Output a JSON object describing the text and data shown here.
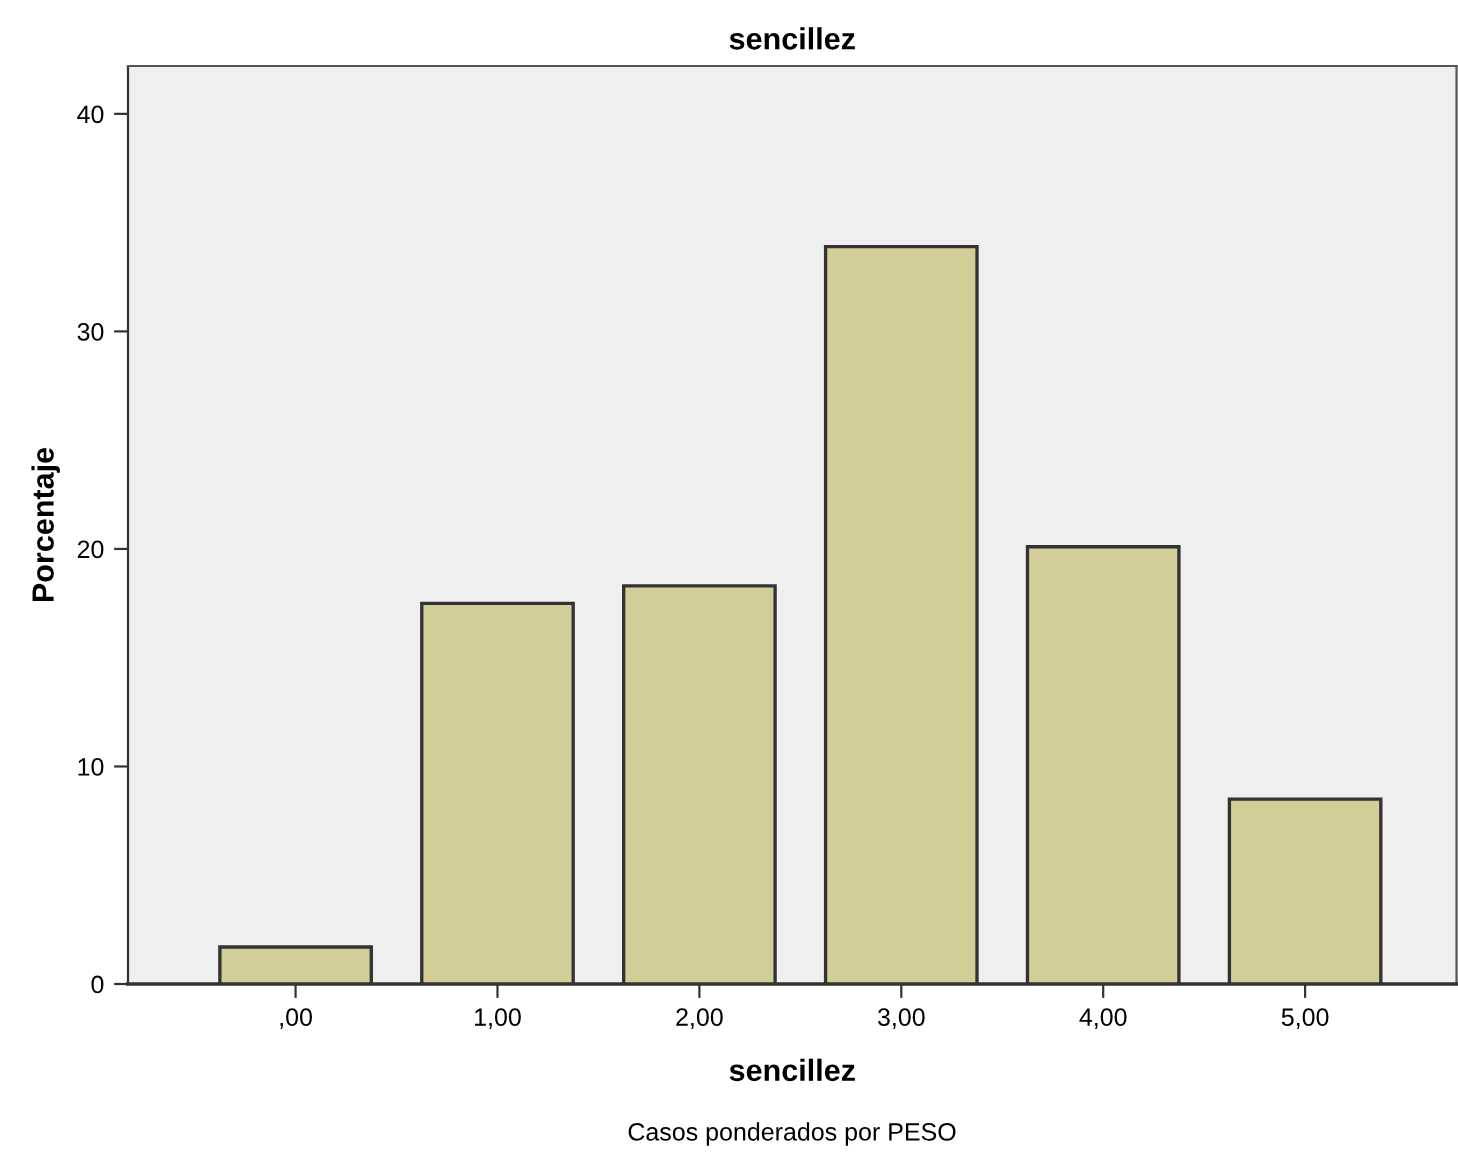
{
  "chart_data": {
    "type": "bar",
    "title": "sencillez",
    "xlabel": "sencillez",
    "ylabel": "Porcentaje",
    "categories": [
      ",00",
      "1,00",
      "2,00",
      "3,00",
      "4,00",
      "5,00"
    ],
    "values": [
      1.7,
      17.5,
      18.3,
      33.9,
      20.1,
      8.5
    ],
    "color": "#d3ce98",
    "ylim": [
      0,
      42.2
    ],
    "yticks": [
      0,
      10,
      20,
      30,
      40
    ],
    "grid": false,
    "annotations": [
      "Casos ponderados por PESO"
    ]
  }
}
